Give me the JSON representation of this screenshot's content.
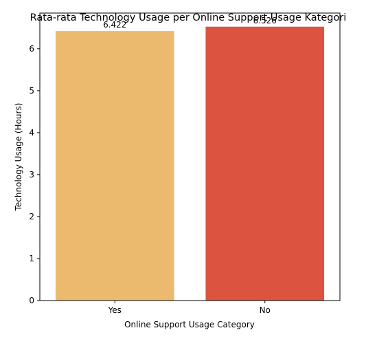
{
  "chart_data": {
    "type": "bar",
    "title": "Rata-rata Technology Usage per Online Support Usage Kategori",
    "xlabel": "Online Support Usage Category",
    "ylabel": "Technology Usage (Hours)",
    "categories": [
      "Yes",
      "No"
    ],
    "values": [
      6.422,
      6.526
    ],
    "value_labels": [
      "6.422",
      "6.526"
    ],
    "colors": [
      "#EBBA6E",
      "#DC5440"
    ],
    "ylim": [
      0,
      6.85
    ],
    "yticks": [
      0,
      1,
      2,
      3,
      4,
      5,
      6
    ],
    "grid": false,
    "legend": "none"
  }
}
